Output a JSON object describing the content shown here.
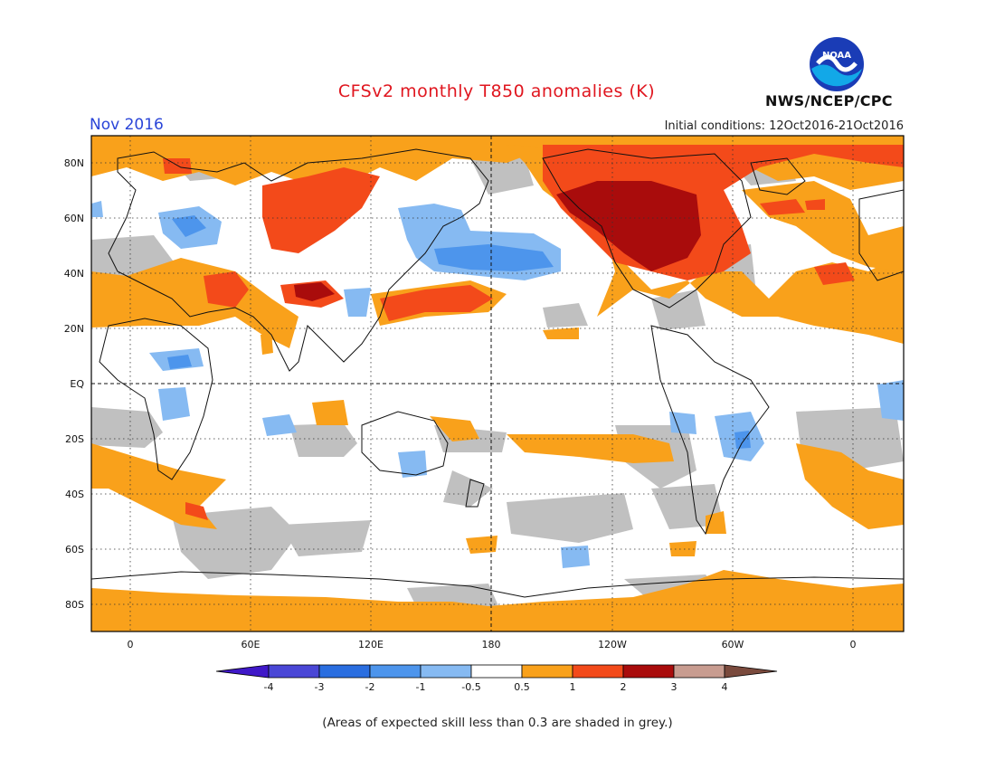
{
  "header": {
    "title": "CFSv2 monthly T850 anomalies (K)",
    "month": "Nov 2016",
    "initial_conditions": "Initial conditions: 12Oct2016-21Oct2016",
    "agency": "NWS/NCEP/CPC",
    "logo_text": "NOAA"
  },
  "axes": {
    "lat_labels": [
      "80N",
      "60N",
      "40N",
      "20N",
      "EQ",
      "20S",
      "40S",
      "60S",
      "80S"
    ],
    "lon_labels": [
      "0",
      "60E",
      "120E",
      "180",
      "120W",
      "60W",
      "0"
    ]
  },
  "colorbar": {
    "labels": [
      "-4",
      "-3",
      "-2",
      "-1",
      "-0.5",
      "0.5",
      "1",
      "2",
      "3",
      "4"
    ],
    "colors": [
      "#3f18c8",
      "#4a47d6",
      "#2a6ee0",
      "#4d95ec",
      "#86baf2",
      "#ffffff",
      "#f9a11b",
      "#f34a1a",
      "#a90c0c",
      "#c89c90",
      "#7a4a3d"
    ]
  },
  "footnote": "(Areas of expected skill less than 0.3 are shaded in grey.)",
  "colors": {
    "grey": "#c0c0c0",
    "orange": "#f9a11b",
    "red": "#f34a1a",
    "dark_red": "#a90c0c",
    "light_blue": "#86baf2",
    "blue": "#4d95ec",
    "mid_blue": "#2a6ee0"
  }
}
